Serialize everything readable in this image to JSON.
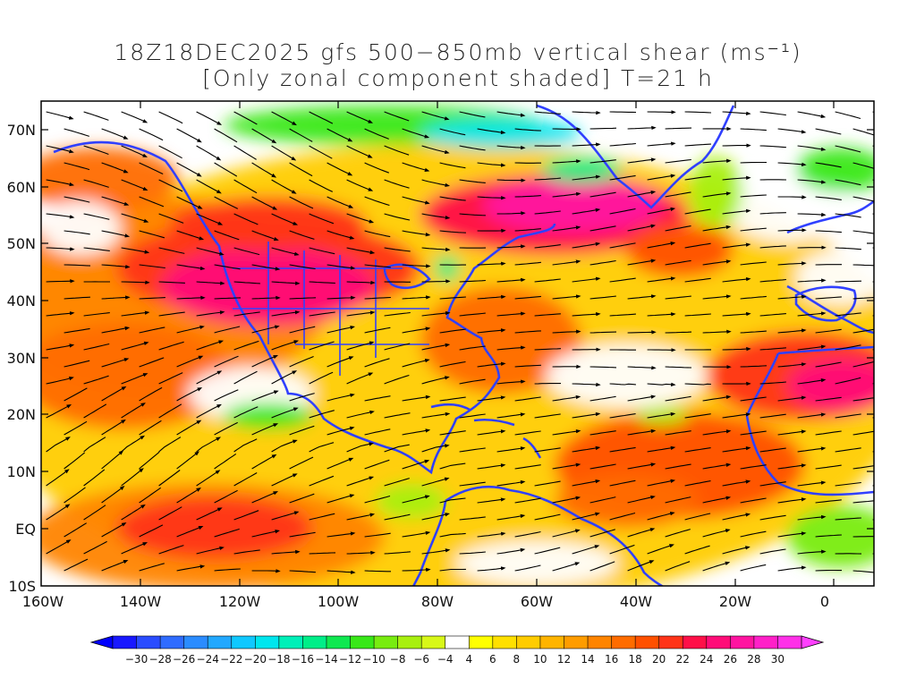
{
  "title": {
    "line1": "18Z18DEC2025 gfs 500−850mb vertical shear (ms⁻¹)",
    "line2": "[Only zonal component shaded] T=21 h"
  },
  "axes": {
    "lat_labels": [
      "70N",
      "60N",
      "50N",
      "40N",
      "30N",
      "20N",
      "10N",
      "EQ",
      "10S"
    ],
    "lon_labels": [
      "160W",
      "140W",
      "120W",
      "100W",
      "80W",
      "60W",
      "40W",
      "20W",
      "0"
    ]
  },
  "colorbar": {
    "labels": [
      "−30",
      "−28",
      "−26",
      "−24",
      "−22",
      "−20",
      "−18",
      "−16",
      "−14",
      "−12",
      "−10",
      "−8",
      "−6",
      "−4",
      "4",
      "6",
      "8",
      "10",
      "12",
      "14",
      "16",
      "18",
      "20",
      "22",
      "24",
      "26",
      "28",
      "30"
    ],
    "colors": [
      "#1818ff",
      "#2a4cff",
      "#2f6cff",
      "#2b8cff",
      "#22a8ff",
      "#10c8ff",
      "#00e6ee",
      "#00f0b8",
      "#00ee88",
      "#10e850",
      "#38e818",
      "#78ec10",
      "#a8f010",
      "#d8f818",
      "#ffffff",
      "#ffff00",
      "#ffe000",
      "#ffcc00",
      "#ffb400",
      "#ff9c00",
      "#ff8400",
      "#ff6c00",
      "#ff5000",
      "#ff3418",
      "#ff1048",
      "#ff0c78",
      "#ff14a0",
      "#ff20c8",
      "#ff30e8"
    ],
    "under_color": "#0000ff",
    "over_color": "#ff40ff"
  },
  "field_colors": {
    "missing": "#ffffff",
    "land_outline": "#3040ff",
    "streamline": "#000000"
  }
}
